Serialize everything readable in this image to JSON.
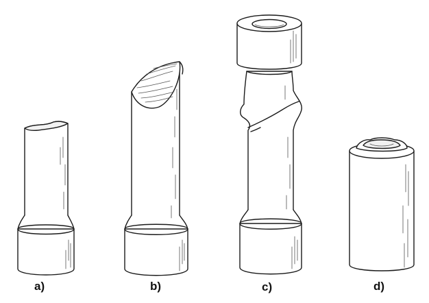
{
  "figure": {
    "labels": {
      "a": "a)",
      "b": "b)",
      "c": "c)",
      "d": "d)"
    },
    "colors": {
      "stroke": "#1a1a1a",
      "fill": "#ffffff",
      "hatch": "#555555"
    }
  }
}
